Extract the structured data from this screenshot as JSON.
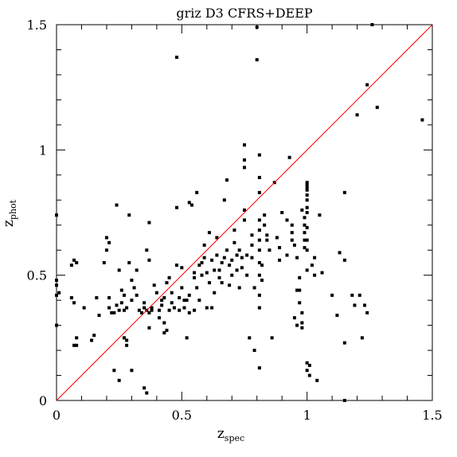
{
  "chart_data": {
    "type": "scatter",
    "title": "griz D3 CFRS+DEEP",
    "xlabel": "z",
    "xlabel_sub": "spec",
    "ylabel": "z",
    "ylabel_sub": "phot",
    "xlim": [
      0,
      1.5
    ],
    "ylim": [
      0,
      1.5
    ],
    "x_ticks": [
      0,
      0.5,
      1,
      1.5
    ],
    "y_ticks": [
      0,
      0.5,
      1,
      1.5
    ],
    "x_tick_labels": [
      "0",
      "0.5",
      "1",
      "1.5"
    ],
    "y_tick_labels": [
      "0",
      "0.5",
      "1",
      "1.5"
    ],
    "reference_line": {
      "x": [
        0,
        1.5
      ],
      "y": [
        0,
        1.5
      ],
      "color": "#ff0000"
    },
    "marker_color": "#000000",
    "grid": false,
    "points": [
      [
        0.0,
        0.74
      ],
      [
        0.0,
        0.48
      ],
      [
        0.0,
        0.42
      ],
      [
        0.0,
        0.3
      ],
      [
        0.01,
        0.43
      ],
      [
        0.0,
        0.46
      ],
      [
        0.06,
        0.54
      ],
      [
        0.07,
        0.56
      ],
      [
        0.08,
        0.55
      ],
      [
        0.06,
        0.41
      ],
      [
        0.07,
        0.39
      ],
      [
        0.07,
        0.22
      ],
      [
        0.08,
        0.25
      ],
      [
        0.08,
        0.22
      ],
      [
        0.11,
        0.37
      ],
      [
        0.14,
        0.24
      ],
      [
        0.15,
        0.26
      ],
      [
        0.16,
        0.41
      ],
      [
        0.17,
        0.34
      ],
      [
        0.19,
        0.55
      ],
      [
        0.2,
        0.6
      ],
      [
        0.2,
        0.65
      ],
      [
        0.21,
        0.63
      ],
      [
        0.21,
        0.41
      ],
      [
        0.21,
        0.37
      ],
      [
        0.22,
        0.35
      ],
      [
        0.23,
        0.35
      ],
      [
        0.23,
        0.12
      ],
      [
        0.24,
        0.78
      ],
      [
        0.25,
        0.08
      ],
      [
        0.24,
        0.38
      ],
      [
        0.25,
        0.36
      ],
      [
        0.25,
        0.52
      ],
      [
        0.26,
        0.39
      ],
      [
        0.26,
        0.44
      ],
      [
        0.27,
        0.36
      ],
      [
        0.27,
        0.42
      ],
      [
        0.27,
        0.25
      ],
      [
        0.28,
        0.24
      ],
      [
        0.28,
        0.22
      ],
      [
        0.28,
        0.37
      ],
      [
        0.29,
        0.74
      ],
      [
        0.29,
        0.55
      ],
      [
        0.3,
        0.12
      ],
      [
        0.3,
        0.4
      ],
      [
        0.3,
        0.48
      ],
      [
        0.31,
        0.45
      ],
      [
        0.32,
        0.52
      ],
      [
        0.32,
        0.42
      ],
      [
        0.33,
        0.36
      ],
      [
        0.34,
        0.35
      ],
      [
        0.35,
        0.37
      ],
      [
        0.35,
        0.39
      ],
      [
        0.35,
        0.05
      ],
      [
        0.36,
        0.03
      ],
      [
        0.36,
        0.36
      ],
      [
        0.37,
        0.71
      ],
      [
        0.37,
        0.29
      ],
      [
        0.37,
        0.35
      ],
      [
        0.38,
        0.37
      ],
      [
        0.38,
        0.36
      ],
      [
        0.36,
        0.6
      ],
      [
        0.37,
        0.56
      ],
      [
        0.39,
        0.46
      ],
      [
        0.4,
        0.43
      ],
      [
        0.41,
        0.36
      ],
      [
        0.41,
        0.33
      ],
      [
        0.42,
        0.4
      ],
      [
        0.42,
        0.38
      ],
      [
        0.43,
        0.41
      ],
      [
        0.43,
        0.31
      ],
      [
        0.43,
        0.27
      ],
      [
        0.44,
        0.28
      ],
      [
        0.44,
        0.47
      ],
      [
        0.45,
        0.49
      ],
      [
        0.45,
        0.36
      ],
      [
        0.46,
        0.43
      ],
      [
        0.46,
        0.39
      ],
      [
        0.47,
        0.37
      ],
      [
        0.48,
        0.77
      ],
      [
        0.48,
        1.37
      ],
      [
        0.48,
        0.54
      ],
      [
        0.49,
        0.41
      ],
      [
        0.49,
        0.36
      ],
      [
        0.5,
        0.53
      ],
      [
        0.5,
        0.45
      ],
      [
        0.51,
        0.4
      ],
      [
        0.51,
        0.37
      ],
      [
        0.52,
        0.25
      ],
      [
        0.52,
        0.4
      ],
      [
        0.53,
        0.42
      ],
      [
        0.53,
        0.35
      ],
      [
        0.53,
        0.79
      ],
      [
        0.54,
        0.78
      ],
      [
        0.55,
        0.51
      ],
      [
        0.55,
        0.49
      ],
      [
        0.55,
        0.36
      ],
      [
        0.56,
        0.83
      ],
      [
        0.56,
        0.45
      ],
      [
        0.57,
        0.54
      ],
      [
        0.57,
        0.4
      ],
      [
        0.58,
        0.55
      ],
      [
        0.58,
        0.5
      ],
      [
        0.59,
        0.62
      ],
      [
        0.59,
        0.57
      ],
      [
        0.6,
        0.51
      ],
      [
        0.6,
        0.37
      ],
      [
        0.61,
        0.67
      ],
      [
        0.61,
        0.47
      ],
      [
        0.62,
        0.37
      ],
      [
        0.62,
        0.56
      ],
      [
        0.63,
        0.52
      ],
      [
        0.63,
        0.43
      ],
      [
        0.64,
        0.65
      ],
      [
        0.64,
        0.58
      ],
      [
        0.65,
        0.52
      ],
      [
        0.65,
        0.49
      ],
      [
        0.66,
        0.55
      ],
      [
        0.66,
        0.47
      ],
      [
        0.67,
        0.8
      ],
      [
        0.67,
        0.57
      ],
      [
        0.68,
        0.88
      ],
      [
        0.68,
        0.6
      ],
      [
        0.69,
        0.54
      ],
      [
        0.69,
        0.46
      ],
      [
        0.7,
        0.56
      ],
      [
        0.7,
        0.5
      ],
      [
        0.71,
        0.68
      ],
      [
        0.71,
        0.63
      ],
      [
        0.72,
        0.58
      ],
      [
        0.72,
        0.52
      ],
      [
        0.73,
        0.6
      ],
      [
        0.73,
        0.45
      ],
      [
        0.74,
        0.57
      ],
      [
        0.74,
        0.53
      ],
      [
        0.75,
        1.02
      ],
      [
        0.75,
        0.96
      ],
      [
        0.75,
        0.93
      ],
      [
        0.75,
        0.76
      ],
      [
        0.75,
        0.72
      ],
      [
        0.76,
        0.58
      ],
      [
        0.76,
        0.5
      ],
      [
        0.77,
        0.25
      ],
      [
        0.78,
        0.66
      ],
      [
        0.78,
        0.62
      ],
      [
        0.78,
        0.57
      ],
      [
        0.79,
        0.2
      ],
      [
        0.79,
        0.45
      ],
      [
        0.8,
        1.49
      ],
      [
        0.8,
        1.36
      ],
      [
        0.81,
        0.98
      ],
      [
        0.81,
        0.89
      ],
      [
        0.81,
        0.83
      ],
      [
        0.81,
        0.72
      ],
      [
        0.81,
        0.68
      ],
      [
        0.81,
        0.64
      ],
      [
        0.81,
        0.6
      ],
      [
        0.81,
        0.55
      ],
      [
        0.81,
        0.5
      ],
      [
        0.81,
        0.42
      ],
      [
        0.81,
        0.37
      ],
      [
        0.81,
        0.13
      ],
      [
        0.82,
        0.54
      ],
      [
        0.82,
        0.48
      ],
      [
        0.83,
        0.7
      ],
      [
        0.83,
        0.74
      ],
      [
        0.84,
        0.66
      ],
      [
        0.84,
        0.64
      ],
      [
        0.85,
        0.6
      ],
      [
        0.86,
        0.25
      ],
      [
        0.87,
        0.87
      ],
      [
        0.88,
        0.65
      ],
      [
        0.89,
        0.61
      ],
      [
        0.89,
        0.56
      ],
      [
        0.9,
        0.75
      ],
      [
        0.92,
        0.72
      ],
      [
        0.92,
        0.58
      ],
      [
        0.93,
        0.97
      ],
      [
        0.94,
        0.7
      ],
      [
        0.94,
        0.67
      ],
      [
        0.94,
        0.64
      ],
      [
        0.95,
        0.62
      ],
      [
        0.95,
        0.33
      ],
      [
        0.96,
        0.3
      ],
      [
        0.96,
        0.44
      ],
      [
        0.96,
        0.57
      ],
      [
        0.97,
        0.49
      ],
      [
        0.97,
        0.44
      ],
      [
        0.97,
        0.39
      ],
      [
        0.98,
        0.35
      ],
      [
        0.98,
        0.31
      ],
      [
        0.98,
        0.29
      ],
      [
        0.98,
        0.76
      ],
      [
        0.99,
        0.73
      ],
      [
        0.99,
        0.7
      ],
      [
        0.99,
        0.67
      ],
      [
        0.99,
        0.64
      ],
      [
        0.99,
        0.61
      ],
      [
        1.0,
        0.87
      ],
      [
        1.0,
        0.86
      ],
      [
        1.0,
        0.85
      ],
      [
        1.0,
        0.84
      ],
      [
        1.0,
        0.82
      ],
      [
        1.0,
        0.8
      ],
      [
        1.0,
        0.77
      ],
      [
        1.0,
        0.75
      ],
      [
        1.0,
        0.69
      ],
      [
        1.0,
        0.64
      ],
      [
        1.0,
        0.6
      ],
      [
        1.0,
        0.52
      ],
      [
        1.0,
        0.15
      ],
      [
        1.0,
        0.12
      ],
      [
        1.01,
        0.14
      ],
      [
        1.01,
        0.1
      ],
      [
        1.02,
        0.54
      ],
      [
        1.03,
        0.57
      ],
      [
        1.03,
        0.5
      ],
      [
        1.04,
        0.08
      ],
      [
        1.05,
        0.74
      ],
      [
        1.06,
        0.51
      ],
      [
        1.1,
        0.42
      ],
      [
        1.12,
        0.34
      ],
      [
        1.13,
        0.59
      ],
      [
        1.15,
        0.83
      ],
      [
        1.15,
        0.56
      ],
      [
        1.15,
        0.23
      ],
      [
        1.15,
        0.0
      ],
      [
        1.18,
        0.42
      ],
      [
        1.19,
        0.38
      ],
      [
        1.2,
        1.14
      ],
      [
        1.21,
        0.42
      ],
      [
        1.22,
        0.25
      ],
      [
        1.23,
        0.38
      ],
      [
        1.24,
        0.35
      ],
      [
        1.24,
        1.26
      ],
      [
        1.26,
        1.5
      ],
      [
        1.28,
        1.17
      ],
      [
        1.46,
        1.12
      ]
    ]
  }
}
